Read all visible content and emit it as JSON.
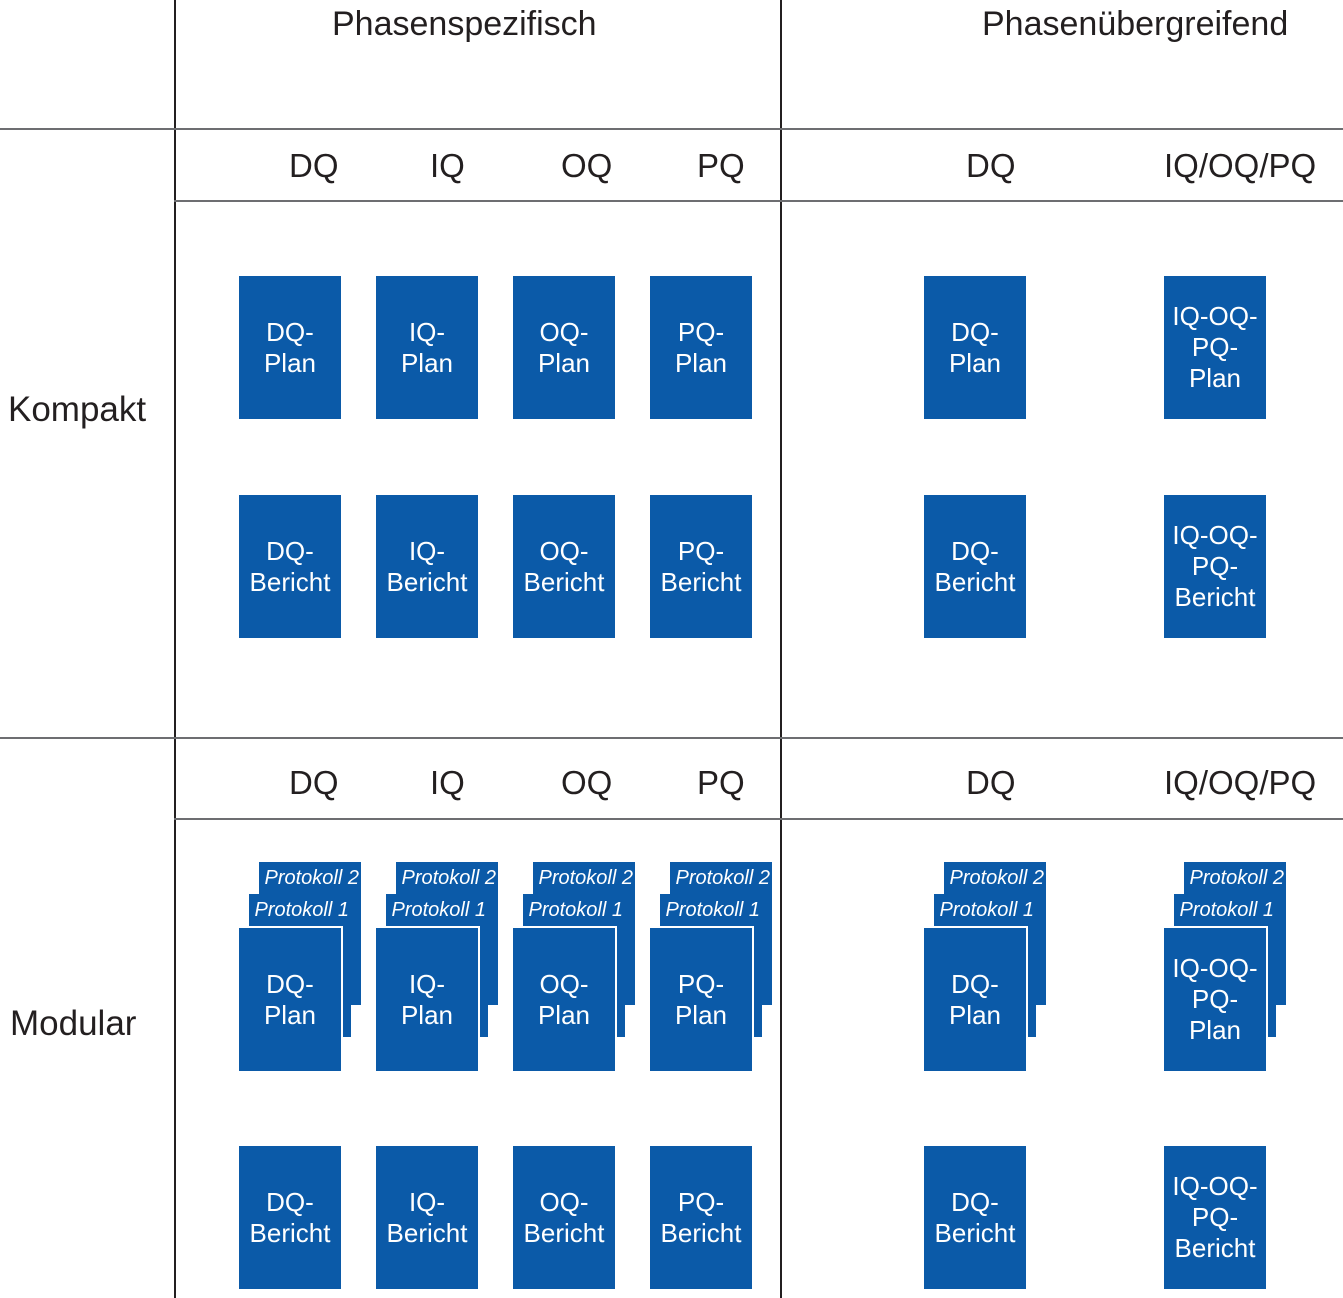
{
  "columns": {
    "left": "Phasenspezifisch",
    "right": "Phasenübergreifend"
  },
  "rows": {
    "compact": "Kompakt",
    "modular": "Modular"
  },
  "phases_left": [
    "DQ",
    "IQ",
    "OQ",
    "PQ"
  ],
  "phases_right": [
    "DQ",
    "IQ/OQ/PQ"
  ],
  "protocols": {
    "p1": "Protokoll 1",
    "p2": "Protokoll 2"
  },
  "docs": {
    "dq_plan": "DQ-\nPlan",
    "iq_plan": "IQ-\nPlan",
    "oq_plan": "OQ-\nPlan",
    "pq_plan": "PQ-\nPlan",
    "dq_bericht": "DQ-\nBericht",
    "iq_bericht": "IQ-\nBericht",
    "oq_bericht": "OQ-\nBericht",
    "pq_bericht": "PQ-\nBericht",
    "iqoqpq_plan": "IQ-OQ-\nPQ-\nPlan",
    "iqoqpq_bericht": "IQ-OQ-\nPQ-\nBericht"
  },
  "colors": {
    "doc_fill": "#0b5aa8",
    "line": "#231f20"
  }
}
